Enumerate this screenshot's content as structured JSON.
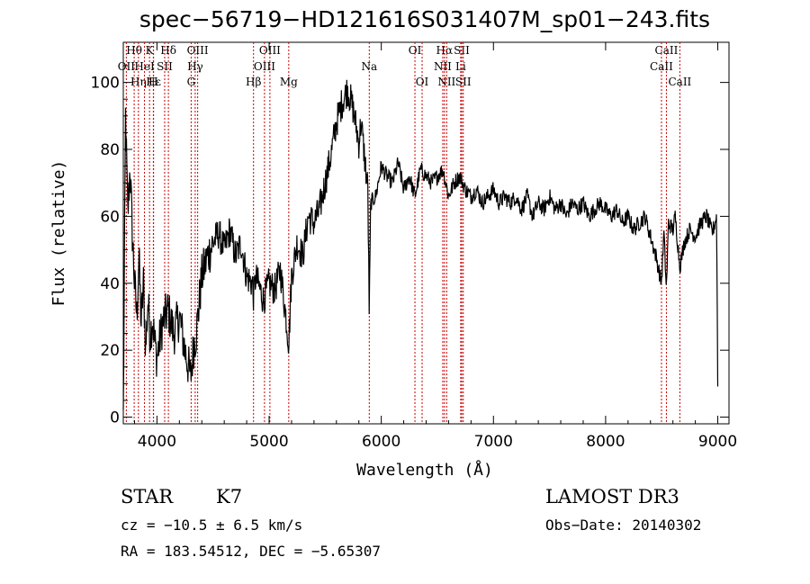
{
  "chart_data": {
    "type": "line",
    "title": "spec−56719−HD121616S031407M_sp01−243.fits",
    "xlabel": "Wavelength (Å)",
    "ylabel": "Flux (relative)",
    "xlim": [
      3700,
      9100
    ],
    "ylim": [
      -2,
      112
    ],
    "xticks": [
      4000,
      5000,
      6000,
      7000,
      8000,
      9000
    ],
    "yticks": [
      0,
      20,
      40,
      60,
      80,
      100
    ],
    "grid": false,
    "line_color": "#000000",
    "marker_color": "#cc0000",
    "series": [
      {
        "x": [
          3700,
          3720,
          3740,
          3760,
          3780,
          3800,
          3820,
          3840,
          3860,
          3880,
          3900,
          3920,
          3940,
          3960,
          3980,
          4000,
          4050,
          4100,
          4150,
          4200,
          4250,
          4300,
          4330,
          4350,
          4400,
          4450,
          4500,
          4550,
          4600,
          4650,
          4700,
          4750,
          4800,
          4850,
          4861,
          4880,
          4950,
          5000,
          5050,
          5100,
          5150,
          5175,
          5200,
          5250,
          5300,
          5350,
          5400,
          5450,
          5500,
          5550,
          5600,
          5650,
          5700,
          5750,
          5800,
          5820,
          5850,
          5880,
          5893,
          5905,
          5950,
          6000,
          6050,
          6100,
          6150,
          6200,
          6250,
          6300,
          6350,
          6400,
          6450,
          6500,
          6550,
          6600,
          6650,
          6700,
          6750,
          6800,
          6850,
          6900,
          6950,
          7000,
          7050,
          7100,
          7150,
          7200,
          7250,
          7300,
          7350,
          7400,
          7450,
          7500,
          7550,
          7600,
          7650,
          7700,
          7750,
          7800,
          7850,
          7900,
          7950,
          8000,
          8050,
          8100,
          8150,
          8200,
          8250,
          8300,
          8350,
          8400,
          8450,
          8498,
          8520,
          8542,
          8560,
          8600,
          8620,
          8662,
          8700,
          8750,
          8800,
          8850,
          8900,
          8950,
          8990,
          9000
        ],
        "y": [
          0,
          90,
          60,
          75,
          55,
          40,
          30,
          48,
          28,
          40,
          20,
          35,
          24,
          30,
          22,
          18,
          28,
          32,
          25,
          30,
          20,
          12,
          22,
          25,
          42,
          48,
          52,
          55,
          50,
          56,
          48,
          52,
          42,
          40,
          36,
          42,
          35,
          40,
          38,
          44,
          30,
          22,
          42,
          52,
          48,
          60,
          58,
          62,
          70,
          78,
          88,
          94,
          98,
          92,
          82,
          88,
          78,
          68,
          30,
          64,
          66,
          75,
          72,
          70,
          76,
          68,
          72,
          66,
          74,
          72,
          70,
          72,
          74,
          66,
          70,
          72,
          68,
          66,
          68,
          64,
          66,
          68,
          64,
          66,
          64,
          66,
          62,
          66,
          60,
          64,
          62,
          66,
          62,
          64,
          60,
          64,
          62,
          64,
          60,
          62,
          64,
          62,
          60,
          62,
          58,
          60,
          56,
          58,
          60,
          54,
          48,
          40,
          55,
          38,
          58,
          56,
          60,
          45,
          52,
          56,
          54,
          58,
          60,
          55,
          60,
          10
        ]
      }
    ],
    "line_markers": [
      {
        "label": "Hθ",
        "x": 3797,
        "row": 0
      },
      {
        "label": "OII",
        "x": 3727,
        "row": 1
      },
      {
        "label": "Hη",
        "x": 3835,
        "row": 2
      },
      {
        "label": "K",
        "x": 3934,
        "row": 0
      },
      {
        "label": "HeI",
        "x": 3889,
        "row": 1
      },
      {
        "label": "Hε",
        "x": 3970,
        "row": 2
      },
      {
        "label": "Hδ",
        "x": 4102,
        "row": 0
      },
      {
        "label": "SII",
        "x": 4069,
        "row": 1
      },
      {
        "label": "H",
        "x": 3968,
        "row": 2
      },
      {
        "label": "OIII",
        "x": 4363,
        "row": 0
      },
      {
        "label": "Hγ",
        "x": 4341,
        "row": 1
      },
      {
        "label": "G",
        "x": 4305,
        "row": 2
      },
      {
        "label": "OIII",
        "x": 5007,
        "row": 0
      },
      {
        "label": "OIII",
        "x": 4959,
        "row": 1
      },
      {
        "label": "Hβ",
        "x": 4861,
        "row": 2
      },
      {
        "label": "Mg",
        "x": 5175,
        "row": 2
      },
      {
        "label": "Na",
        "x": 5893,
        "row": 1
      },
      {
        "label": "OI",
        "x": 6300,
        "row": 0
      },
      {
        "label": "OI",
        "x": 6364,
        "row": 2
      },
      {
        "label": "Hα",
        "x": 6563,
        "row": 0
      },
      {
        "label": "SII",
        "x": 6717,
        "row": 0
      },
      {
        "label": "NII",
        "x": 6548,
        "row": 1
      },
      {
        "label": "Li",
        "x": 6708,
        "row": 1
      },
      {
        "label": "NII",
        "x": 6583,
        "row": 2
      },
      {
        "label": "SII",
        "x": 6731,
        "row": 2
      },
      {
        "label": "CaII",
        "x": 8542,
        "row": 0
      },
      {
        "label": "CaII",
        "x": 8498,
        "row": 1
      },
      {
        "label": "CaII",
        "x": 8662,
        "row": 2
      }
    ]
  },
  "info": {
    "object_type": "STAR",
    "subclass": "K7",
    "survey": "LAMOST DR3",
    "redshift": "cz = −10.5 ± 6.5 km/s",
    "obs_date": "Obs−Date: 20140302",
    "coords": "RA = 183.54512, DEC =  −5.65307"
  }
}
